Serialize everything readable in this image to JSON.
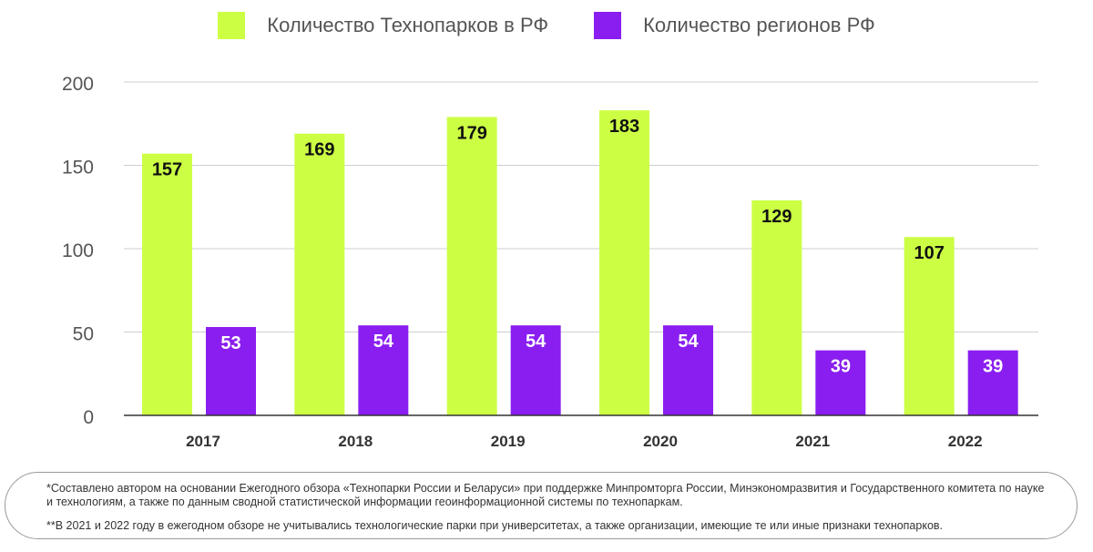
{
  "chart_data": {
    "type": "bar",
    "categories": [
      "2017",
      "2018",
      "2019",
      "2020",
      "2021",
      "2022"
    ],
    "series": [
      {
        "name": "Количество Технопарков в РФ",
        "color": "#ccff44",
        "values": [
          157,
          169,
          179,
          183,
          129,
          107
        ],
        "label_color": "#111111"
      },
      {
        "name": "Количество регионов РФ",
        "color": "#8a1ef0",
        "values": [
          53,
          54,
          54,
          54,
          39,
          39
        ],
        "label_color": "#ffffff"
      }
    ],
    "ylim": [
      0,
      200
    ],
    "yticks": [
      "0",
      "50",
      "100",
      "150",
      "200"
    ],
    "grid": true,
    "legend_position": "top-center",
    "title": "",
    "xlabel": "",
    "ylabel": ""
  },
  "notes": [
    "*Составлено автором на основании Ежегодного обзора «Технопарки России и Беларуси» при поддержке Минпромторга России, Минэкономразвития и Государственного комитета по науке и технологиям, а также по данным сводной статистической информации геоинформационной системы по технопаркам.",
    "**В 2021 и 2022 году в ежегодном обзоре не учитывались технологические парки при университетах, а также организации, имеющие те или иные признаки технопарков."
  ]
}
